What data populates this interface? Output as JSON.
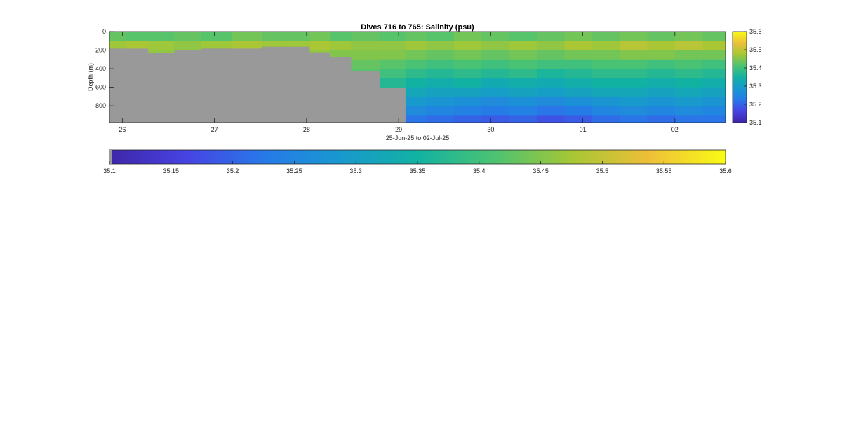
{
  "chart_data": {
    "type": "heatmap",
    "title": "Dives 716 to 765: Salinity (psu)",
    "xlabel": "25-Jun-25 to 02-Jul-25",
    "ylabel": "Depth (m)",
    "x_ticks": [
      "26",
      "27",
      "28",
      "29",
      "30",
      "01",
      "02"
    ],
    "x_tick_values": [
      26,
      27,
      28,
      29,
      30,
      31,
      32
    ],
    "xlim": [
      25.86,
      32.55
    ],
    "y_ticks": [
      "0",
      "200",
      "400",
      "600",
      "800"
    ],
    "y_tick_values": [
      0,
      200,
      400,
      600,
      800
    ],
    "ylim": [
      0,
      980
    ],
    "y_reversed": true,
    "clim": [
      35.1,
      35.6
    ],
    "colorbar_ticks": [
      "35.1",
      "35.2",
      "35.3",
      "35.4",
      "35.5",
      "35.6"
    ],
    "colorbar_tick_values": [
      35.1,
      35.2,
      35.3,
      35.4,
      35.5,
      35.6
    ],
    "horizontal_colorbar_ticks": [
      "35.1",
      "35.15",
      "35.2",
      "35.25",
      "35.3",
      "35.35",
      "35.4",
      "35.45",
      "35.5",
      "35.55",
      "35.6"
    ],
    "horizontal_colorbar_tick_values": [
      35.1,
      35.15,
      35.2,
      35.25,
      35.3,
      35.35,
      35.4,
      35.45,
      35.5,
      35.55,
      35.6
    ],
    "colormap": "parula",
    "nodata_color": "#999999",
    "depth_levels": [
      0,
      100,
      200,
      300,
      400,
      500,
      600,
      700,
      800,
      900
    ],
    "profiles": [
      {
        "x": 25.93,
        "max_depth": 180,
        "salinity": [
          35.43,
          35.47,
          35.45,
          null,
          null,
          null,
          null,
          null,
          null,
          null
        ]
      },
      {
        "x": 26.15,
        "max_depth": 180,
        "salinity": [
          35.42,
          35.48,
          35.46,
          null,
          null,
          null,
          null,
          null,
          null,
          null
        ]
      },
      {
        "x": 26.41,
        "max_depth": 230,
        "salinity": [
          35.42,
          35.47,
          35.46,
          null,
          null,
          null,
          null,
          null,
          null,
          null
        ]
      },
      {
        "x": 26.71,
        "max_depth": 200,
        "salinity": [
          35.43,
          35.46,
          35.45,
          null,
          null,
          null,
          null,
          null,
          null,
          null
        ]
      },
      {
        "x": 27.0,
        "max_depth": 180,
        "salinity": [
          35.42,
          35.47,
          35.44,
          null,
          null,
          null,
          null,
          null,
          null,
          null
        ]
      },
      {
        "x": 27.37,
        "max_depth": 180,
        "salinity": [
          35.44,
          35.48,
          35.45,
          null,
          null,
          null,
          null,
          null,
          null,
          null
        ]
      },
      {
        "x": 27.66,
        "max_depth": 160,
        "salinity": [
          35.43,
          35.47,
          35.45,
          null,
          null,
          null,
          null,
          null,
          null,
          null
        ]
      },
      {
        "x": 27.93,
        "max_depth": 160,
        "salinity": [
          35.43,
          35.47,
          35.46,
          null,
          null,
          null,
          null,
          null,
          null,
          null
        ]
      },
      {
        "x": 28.14,
        "max_depth": 220,
        "salinity": [
          35.44,
          35.48,
          35.46,
          null,
          null,
          null,
          null,
          null,
          null,
          null
        ]
      },
      {
        "x": 28.37,
        "max_depth": 270,
        "salinity": [
          35.42,
          35.47,
          35.45,
          35.44,
          null,
          null,
          null,
          null,
          null,
          null
        ]
      },
      {
        "x": 28.6,
        "max_depth": 420,
        "salinity": [
          35.43,
          35.46,
          35.45,
          35.43,
          35.42,
          null,
          null,
          null,
          null,
          null
        ]
      },
      {
        "x": 29.0,
        "max_depth": 600,
        "salinity": [
          35.42,
          35.46,
          35.45,
          35.42,
          35.4,
          35.37,
          null,
          null,
          null,
          null
        ]
      },
      {
        "x": 29.15,
        "max_depth": 980,
        "salinity": [
          35.43,
          35.47,
          35.44,
          35.41,
          35.38,
          35.35,
          35.32,
          35.29,
          35.26,
          35.22
        ]
      },
      {
        "x": 29.45,
        "max_depth": 980,
        "salinity": [
          35.42,
          35.46,
          35.43,
          35.4,
          35.37,
          35.34,
          35.31,
          35.28,
          35.25,
          35.21
        ]
      },
      {
        "x": 29.75,
        "max_depth": 980,
        "salinity": [
          35.44,
          35.47,
          35.44,
          35.41,
          35.38,
          35.35,
          35.31,
          35.27,
          35.24,
          35.2
        ]
      },
      {
        "x": 30.05,
        "max_depth": 980,
        "salinity": [
          35.43,
          35.46,
          35.43,
          35.4,
          35.37,
          35.33,
          35.3,
          35.26,
          35.23,
          35.19
        ]
      },
      {
        "x": 30.35,
        "max_depth": 980,
        "salinity": [
          35.42,
          35.47,
          35.44,
          35.41,
          35.38,
          35.34,
          35.31,
          35.27,
          35.24,
          35.2
        ]
      },
      {
        "x": 30.65,
        "max_depth": 980,
        "salinity": [
          35.43,
          35.46,
          35.43,
          35.4,
          35.36,
          35.33,
          35.3,
          35.26,
          35.22,
          35.18
        ]
      },
      {
        "x": 30.95,
        "max_depth": 980,
        "salinity": [
          35.44,
          35.48,
          35.44,
          35.4,
          35.37,
          35.34,
          35.31,
          35.27,
          35.23,
          35.19
        ]
      },
      {
        "x": 31.25,
        "max_depth": 980,
        "salinity": [
          35.43,
          35.47,
          35.44,
          35.41,
          35.38,
          35.35,
          35.32,
          35.28,
          35.25,
          35.21
        ]
      },
      {
        "x": 31.55,
        "max_depth": 980,
        "salinity": [
          35.44,
          35.49,
          35.45,
          35.41,
          35.38,
          35.35,
          35.32,
          35.29,
          35.26,
          35.22
        ]
      },
      {
        "x": 31.85,
        "max_depth": 980,
        "salinity": [
          35.43,
          35.48,
          35.45,
          35.4,
          35.37,
          35.34,
          35.31,
          35.28,
          35.25,
          35.21
        ]
      },
      {
        "x": 32.15,
        "max_depth": 980,
        "salinity": [
          35.44,
          35.49,
          35.44,
          35.41,
          35.38,
          35.35,
          35.32,
          35.29,
          35.26,
          35.22
        ]
      },
      {
        "x": 32.45,
        "max_depth": 980,
        "salinity": [
          35.43,
          35.48,
          35.44,
          35.4,
          35.37,
          35.34,
          35.31,
          35.28,
          35.25,
          35.22
        ]
      }
    ]
  }
}
